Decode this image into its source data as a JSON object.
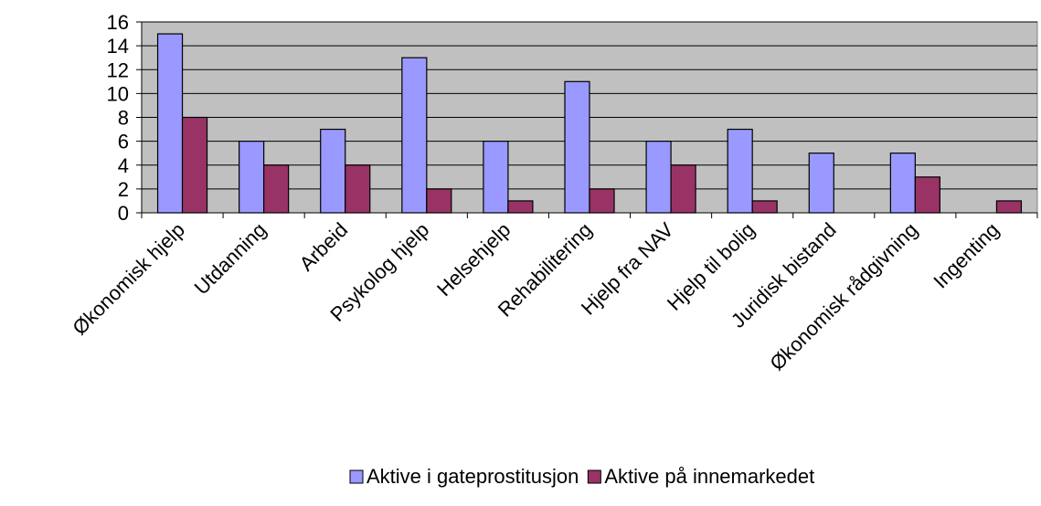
{
  "chart_data": {
    "type": "bar",
    "categories": [
      "Økonomisk hjelp",
      "Utdanning",
      "Arbeid",
      "Psykolog hjelp",
      "Helsehjelp",
      "Rehabilitering",
      "Hjelp fra NAV",
      "Hjelp til bolig",
      "Juridisk bistand",
      "Økonomisk rådgivning",
      "Ingenting"
    ],
    "series": [
      {
        "name": "Aktive i gateprostitusjon",
        "color": "#9999ff",
        "values": [
          15,
          6,
          7,
          13,
          6,
          11,
          6,
          7,
          5,
          5,
          0
        ]
      },
      {
        "name": "Aktive på innemarkedet",
        "color": "#993366",
        "values": [
          8,
          4,
          4,
          2,
          1,
          2,
          4,
          1,
          0,
          3,
          1
        ]
      }
    ],
    "ylim": [
      0,
      16
    ],
    "yticks": [
      0,
      2,
      4,
      6,
      8,
      10,
      12,
      14,
      16
    ],
    "grid": true,
    "legend": "bottom"
  }
}
